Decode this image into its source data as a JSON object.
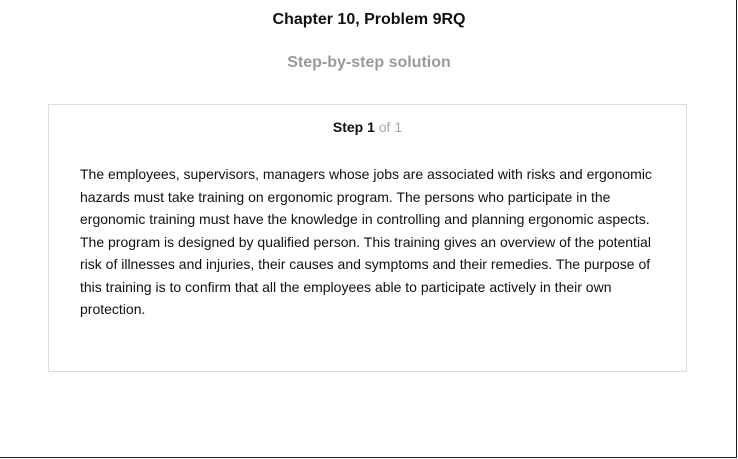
{
  "header": {
    "chapter_title": "Chapter 10, Problem 9RQ",
    "subtitle": "Step-by-step solution"
  },
  "step": {
    "label": "Step 1",
    "of_text": "of 1",
    "body": "The employees, supervisors, managers whose jobs are associated with risks and ergonomic hazards must take training on ergonomic program. The persons who participate in the ergonomic training must have the knowledge in controlling and planning ergonomic aspects. The program is designed by qualified person. This training gives an overview of the potential risk of illnesses and injuries, their causes and symptoms and their remedies. The purpose of this training is to confirm that all the employees able to participate actively in their own protection."
  }
}
